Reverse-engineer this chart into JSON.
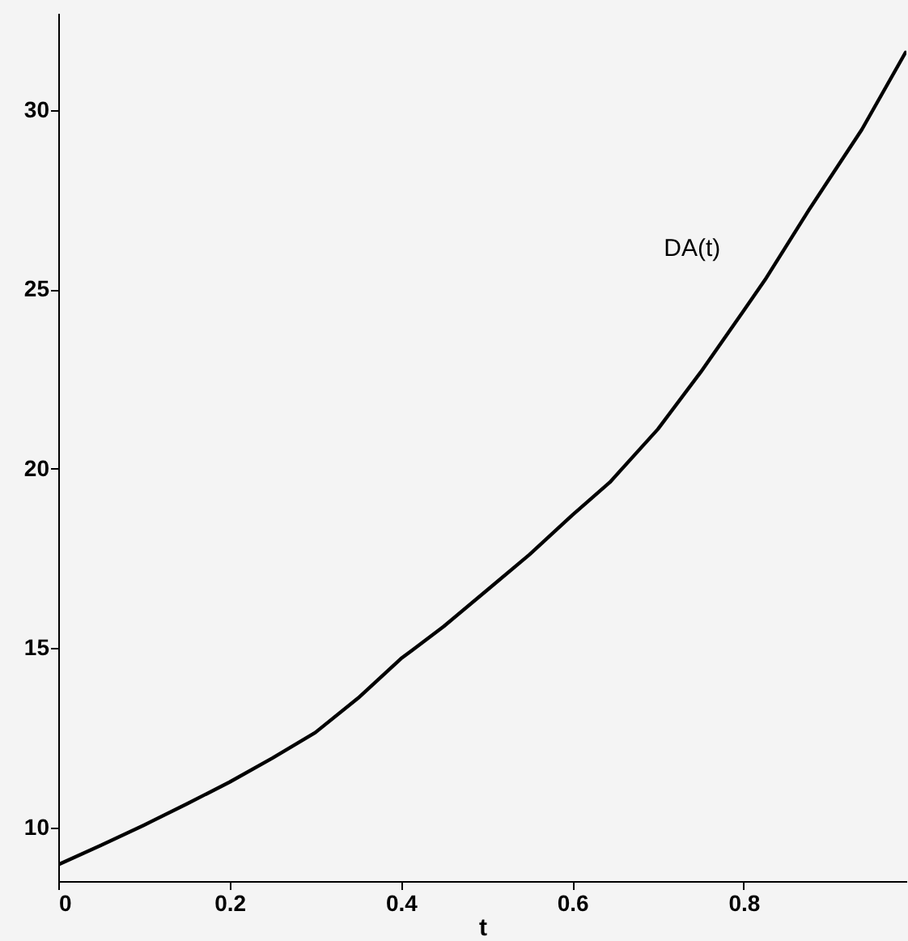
{
  "chart_data": {
    "type": "line",
    "xlabel": "t",
    "x": [
      0,
      0.05,
      0.1,
      0.15,
      0.2,
      0.25,
      0.3,
      0.35,
      0.4,
      0.45,
      0.5,
      0.55,
      0.6,
      0.644,
      0.7,
      0.75,
      0.8,
      0.825,
      0.876,
      0.938,
      0.989
    ],
    "series": [
      {
        "name": "DA(t)",
        "color": "#000000",
        "values": [
          8.96,
          9.5,
          10.06,
          10.65,
          11.26,
          11.93,
          12.64,
          13.6,
          14.7,
          15.6,
          16.6,
          17.6,
          18.7,
          19.62,
          21.1,
          22.69,
          24.4,
          25.26,
          27.2,
          29.45,
          31.6
        ]
      }
    ],
    "xlim": [
      0,
      0.99
    ],
    "ylim": [
      8.5,
      32.7
    ],
    "xticks": [
      0,
      0.2,
      0.4,
      0.6,
      0.8
    ],
    "yticks": [
      10,
      15,
      20,
      25,
      30
    ],
    "grid": false,
    "marker": "none",
    "line_style": "solid"
  }
}
